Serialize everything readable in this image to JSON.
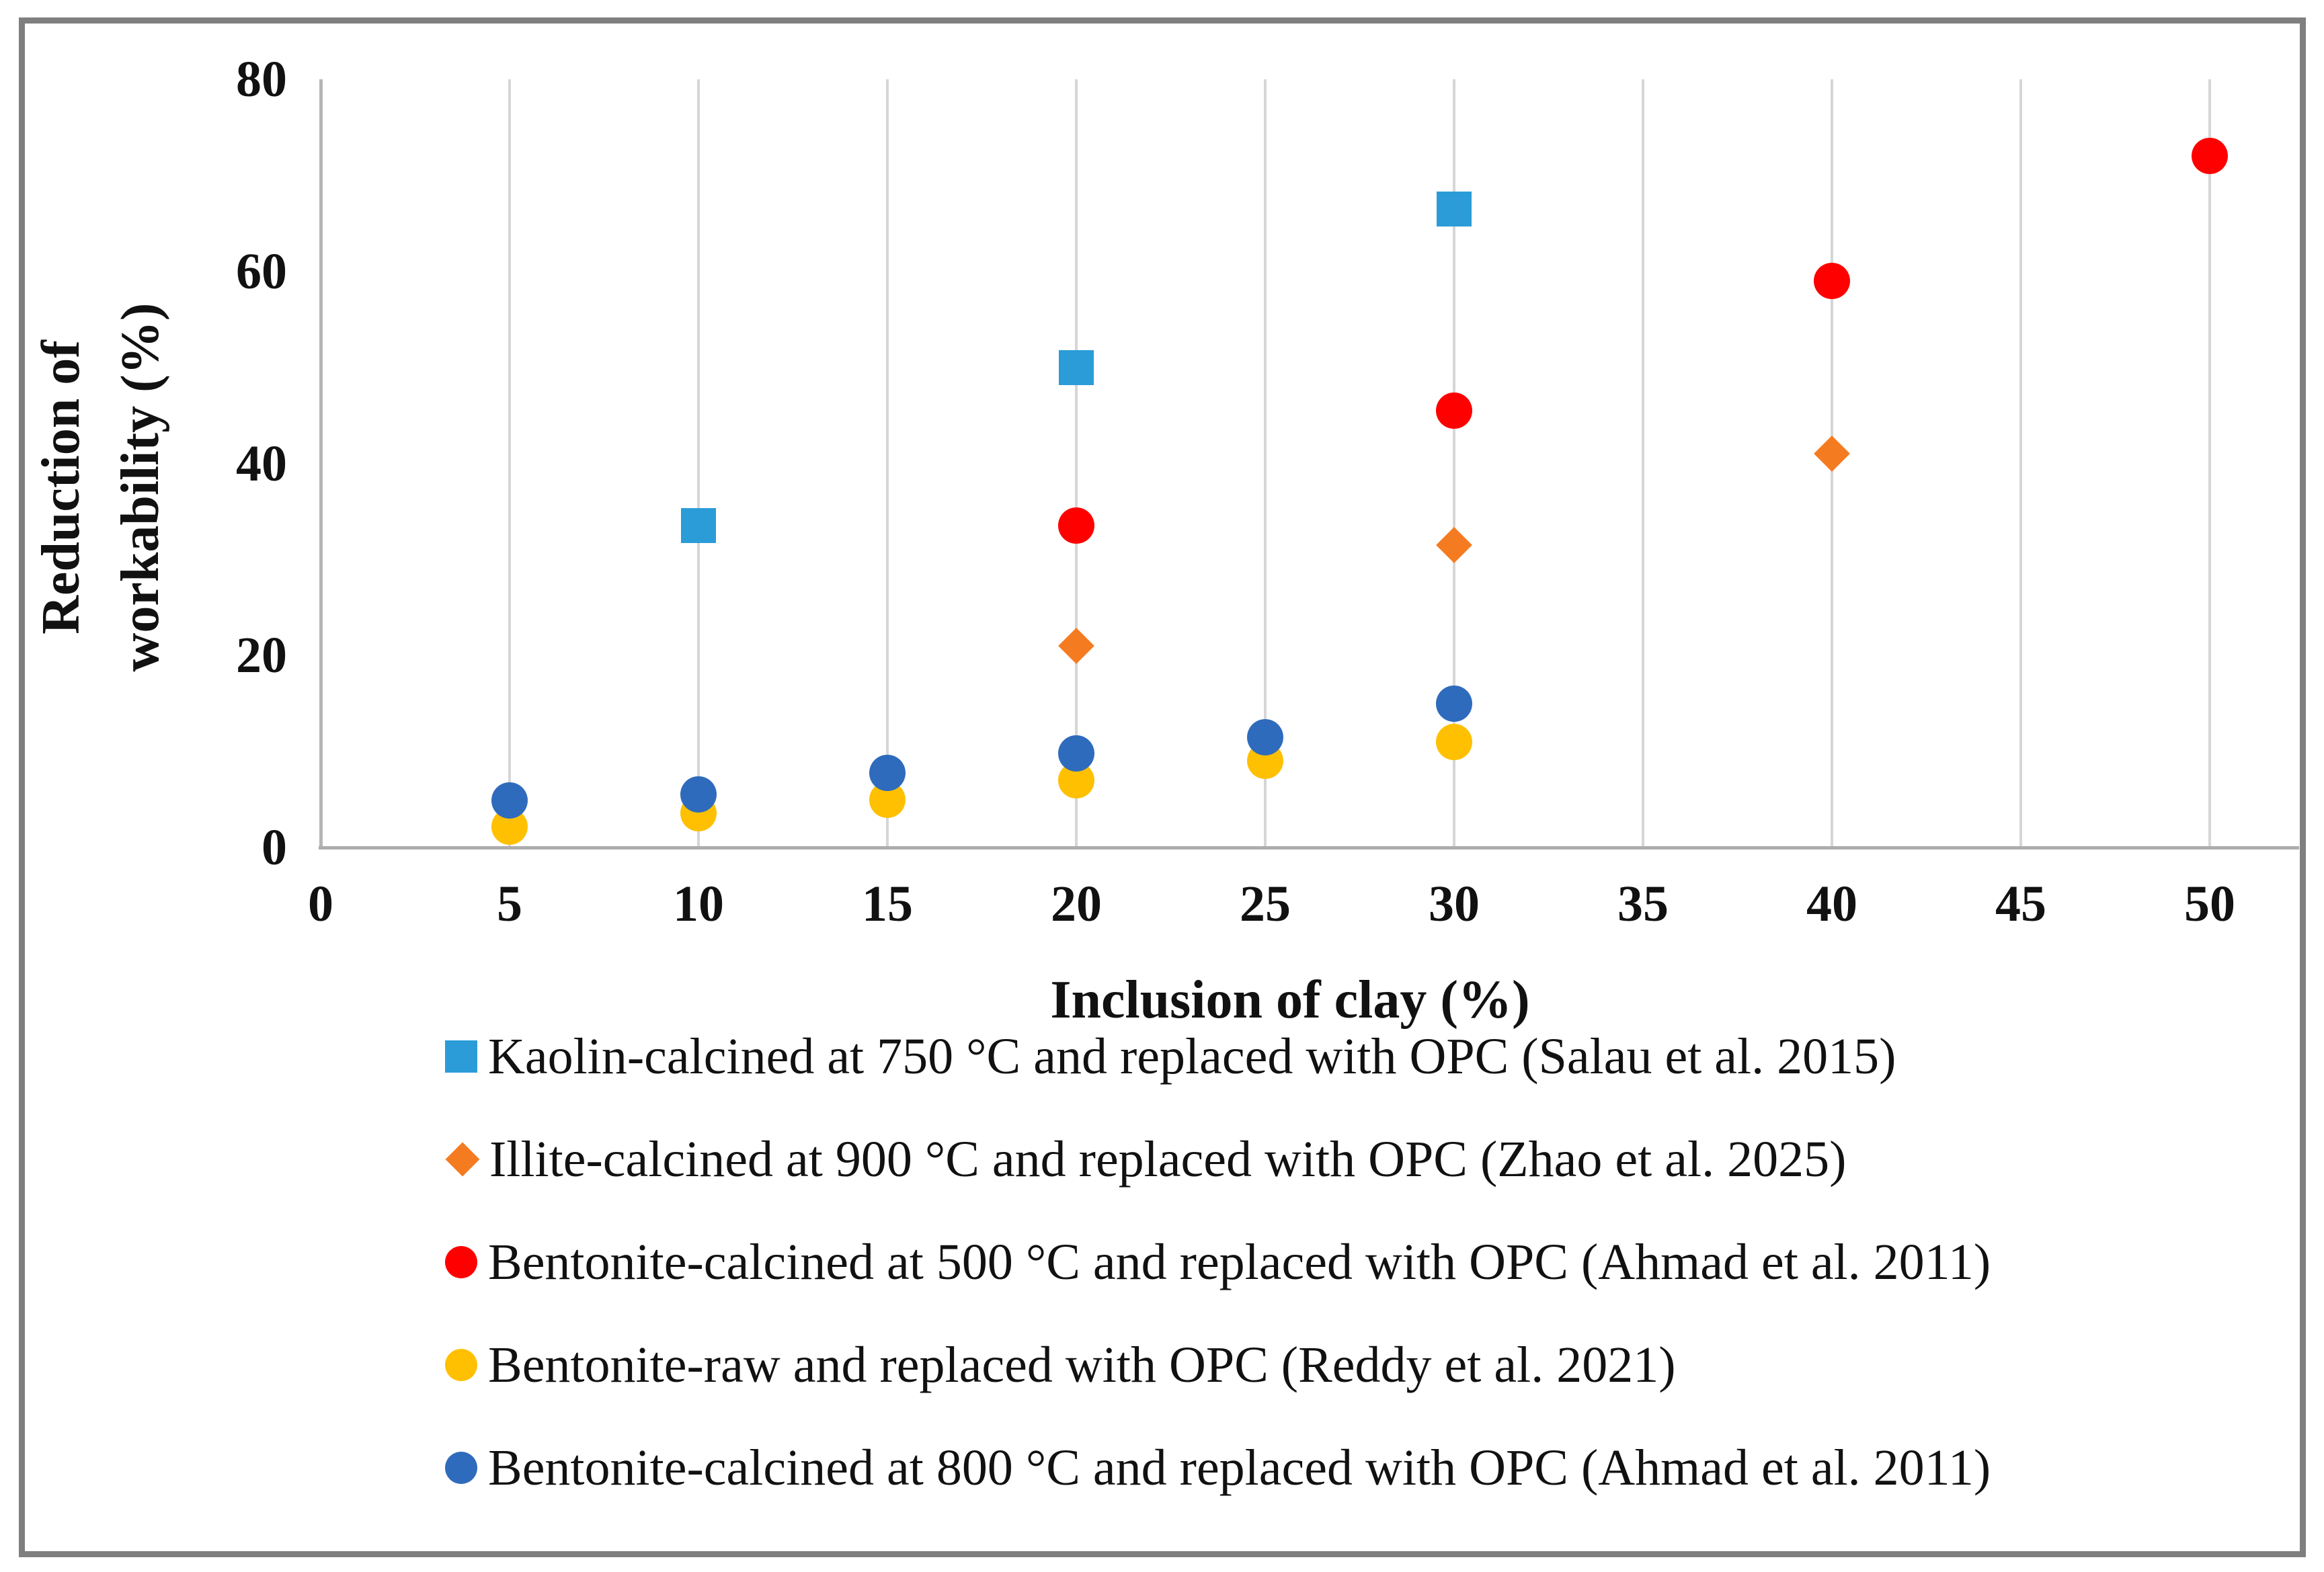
{
  "figure": {
    "background": "#ffffff",
    "border_color": "#7f7f7f",
    "gridline_color": "#d6d6d6",
    "axis_line_color": "#adadad"
  },
  "chart_data": {
    "type": "scatter",
    "title": "",
    "xlabel": "Inclusion of clay (%)",
    "ylabel_lines": [
      "Reduction of",
      "workability (%)"
    ],
    "xlim": [
      0,
      50
    ],
    "ylim": [
      0,
      80
    ],
    "x_ticks": [
      0,
      5,
      10,
      15,
      20,
      25,
      30,
      35,
      40,
      45,
      50
    ],
    "y_ticks": [
      0,
      20,
      40,
      60,
      80
    ],
    "grid": "vertical-gridlines-only",
    "legend_position": "bottom-left",
    "series": [
      {
        "name": "Kaolin-calcined at 750 °C and replaced with OPC (Salau et al. 2015)",
        "marker": "square",
        "color": "#2b9cd8",
        "points": [
          [
            10,
            33.5
          ],
          [
            20,
            50
          ],
          [
            30,
            66.5
          ]
        ]
      },
      {
        "name": "Illite-calcined at 900 °C and replaced with OPC (Zhao et al. 2025)",
        "marker": "diamond",
        "color": "#f57b21",
        "points": [
          [
            20,
            21
          ],
          [
            30,
            31.5
          ],
          [
            40,
            41
          ]
        ]
      },
      {
        "name": "Bentonite-calcined at 500 °C and replaced with OPC (Ahmad et al. 2011)",
        "marker": "circle",
        "color": "#fe0000",
        "points": [
          [
            20,
            33.5
          ],
          [
            30,
            45.5
          ],
          [
            40,
            59
          ],
          [
            50,
            72
          ]
        ]
      },
      {
        "name": "Bentonite-raw and replaced with OPC (Reddy et al. 2021)",
        "marker": "circle",
        "color": "#ffc002",
        "points": [
          [
            5,
            2.2
          ],
          [
            10,
            3.6
          ],
          [
            15,
            5
          ],
          [
            20,
            7
          ],
          [
            25,
            9
          ],
          [
            30,
            11
          ]
        ]
      },
      {
        "name": "Bentonite-calcined at 800 °C and replaced with OPC (Ahmad et al. 2011)",
        "marker": "circle",
        "color": "#2f6bbd",
        "points": [
          [
            5,
            4.9
          ],
          [
            10,
            5.5
          ],
          [
            15,
            7.8
          ],
          [
            20,
            9.8
          ],
          [
            25,
            11.5
          ],
          [
            30,
            15
          ]
        ]
      }
    ]
  }
}
